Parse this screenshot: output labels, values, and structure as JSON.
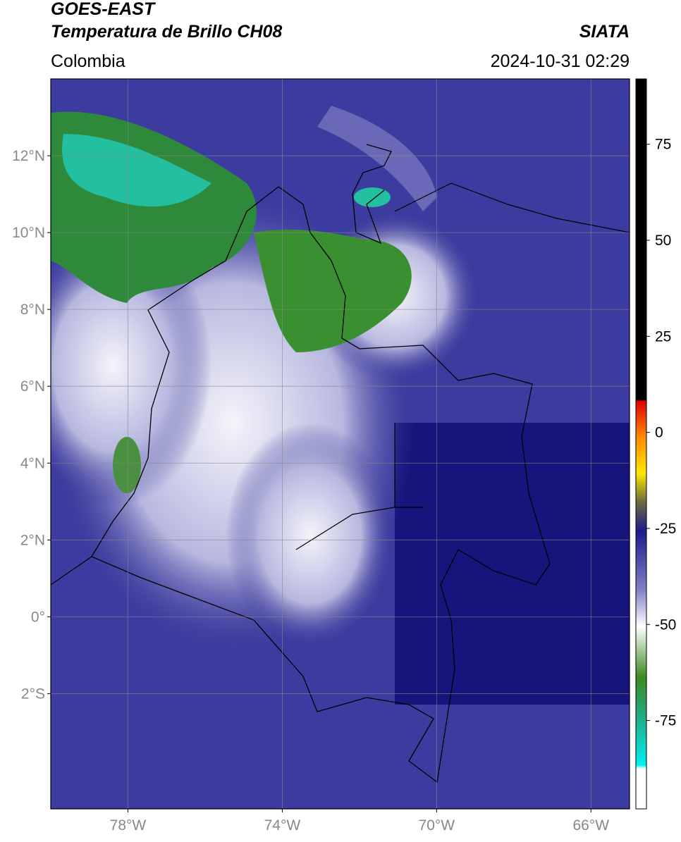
{
  "header": {
    "title": "GOES-EAST",
    "subtitle": "Temperatura de Brillo CH08",
    "source": "SIATA",
    "region": "Colombia",
    "datetime": "2024-10-31 02:29"
  },
  "map": {
    "xlim": [
      -80,
      -65
    ],
    "ylim": [
      -5,
      14
    ],
    "grid": true,
    "xticks": [
      {
        "value": -78,
        "label": "78°W"
      },
      {
        "value": -74,
        "label": "74°W"
      },
      {
        "value": -70,
        "label": "70°W"
      },
      {
        "value": -66,
        "label": "66°W"
      }
    ],
    "yticks": [
      {
        "value": 12,
        "label": "12°N"
      },
      {
        "value": 10,
        "label": "10°N"
      },
      {
        "value": 8,
        "label": "8°N"
      },
      {
        "value": 6,
        "label": "6°N"
      },
      {
        "value": 4,
        "label": "4°N"
      },
      {
        "value": 2,
        "label": "2°N"
      },
      {
        "value": 0,
        "label": "0°"
      },
      {
        "value": -2,
        "label": "2°S"
      }
    ]
  },
  "colorbar": {
    "lim": [
      -98,
      92
    ],
    "ticks": [
      75,
      50,
      25,
      0,
      -25,
      -50,
      -75
    ]
  }
}
